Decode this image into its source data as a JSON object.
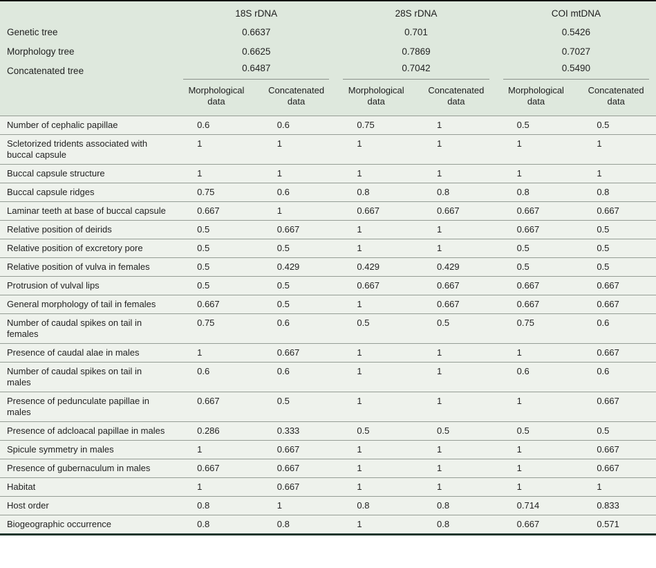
{
  "table": {
    "gene_groups": [
      "18S rDNA",
      "28S rDNA",
      "COI mtDNA"
    ],
    "tree_rows": [
      {
        "label": "Genetic tree",
        "values": [
          "0.6637",
          "0.701",
          "0.5426"
        ]
      },
      {
        "label": "Morphology tree",
        "values": [
          "0.6625",
          "0.7869",
          "0.7027"
        ]
      },
      {
        "label": "Concatenated tree",
        "values": [
          "0.6487",
          "0.7042",
          "0.5490"
        ]
      }
    ],
    "subheaders": [
      "Morphological data",
      "Concatenated data"
    ],
    "rows": [
      {
        "label": "Number of cephalic papillae",
        "values": [
          "0.6",
          "0.6",
          "0.75",
          "1",
          "0.5",
          "0.5"
        ]
      },
      {
        "label": "Scletorized tridents associated with buccal capsule",
        "values": [
          "1",
          "1",
          "1",
          "1",
          "1",
          "1"
        ]
      },
      {
        "label": "Buccal capsule structure",
        "values": [
          "1",
          "1",
          "1",
          "1",
          "1",
          "1"
        ]
      },
      {
        "label": "Buccal capsule ridges",
        "values": [
          "0.75",
          "0.6",
          "0.8",
          "0.8",
          "0.8",
          "0.8"
        ]
      },
      {
        "label": "Laminar teeth at base of buccal capsule",
        "values": [
          "0.667",
          "1",
          "0.667",
          "0.667",
          "0.667",
          "0.667"
        ]
      },
      {
        "label": "Relative position of deirids",
        "values": [
          "0.5",
          "0.667",
          "1",
          "1",
          "0.667",
          "0.5"
        ]
      },
      {
        "label": "Relative position of excretory pore",
        "values": [
          "0.5",
          "0.5",
          "1",
          "1",
          "0.5",
          "0.5"
        ]
      },
      {
        "label": "Relative position of vulva in females",
        "values": [
          "0.5",
          "0.429",
          "0.429",
          "0.429",
          "0.5",
          "0.5"
        ]
      },
      {
        "label": "Protrusion of vulval lips",
        "values": [
          "0.5",
          "0.5",
          "0.667",
          "0.667",
          "0.667",
          "0.667"
        ]
      },
      {
        "label": "General morphology of tail in females",
        "values": [
          "0.667",
          "0.5",
          "1",
          "0.667",
          "0.667",
          "0.667"
        ]
      },
      {
        "label": "Number of caudal spikes on tail in females",
        "values": [
          "0.75",
          "0.6",
          "0.5",
          "0.5",
          "0.75",
          "0.6"
        ]
      },
      {
        "label": "Presence of caudal alae in males",
        "values": [
          "1",
          "0.667",
          "1",
          "1",
          "1",
          "0.667"
        ]
      },
      {
        "label": "Number of caudal spikes on tail in males",
        "values": [
          "0.6",
          "0.6",
          "1",
          "1",
          "0.6",
          "0.6"
        ]
      },
      {
        "label": "Presence of pedunculate papillae in males",
        "values": [
          "0.667",
          "0.5",
          "1",
          "1",
          "1",
          "0.667"
        ]
      },
      {
        "label": "Presence of adcloacal papillae in males",
        "values": [
          "0.286",
          "0.333",
          "0.5",
          "0.5",
          "0.5",
          "0.5"
        ]
      },
      {
        "label": "Spicule symmetry in males",
        "values": [
          "1",
          "0.667",
          "1",
          "1",
          "1",
          "0.667"
        ]
      },
      {
        "label": "Presence of gubernaculum in males",
        "values": [
          "0.667",
          "0.667",
          "1",
          "1",
          "1",
          "0.667"
        ]
      },
      {
        "label": "Habitat",
        "values": [
          "1",
          "0.667",
          "1",
          "1",
          "1",
          "1"
        ]
      },
      {
        "label": "Host order",
        "values": [
          "0.8",
          "1",
          "0.8",
          "0.8",
          "0.714",
          "0.833"
        ]
      },
      {
        "label": "Biogeographic occurrence",
        "values": [
          "0.8",
          "0.8",
          "1",
          "0.8",
          "0.667",
          "0.571"
        ]
      }
    ]
  },
  "colors": {
    "header_bg": "#dee8dd",
    "body_bg": "#eef2ec",
    "row_line": "#959d95",
    "top_border": "#111111",
    "bottom_border": "#17352c"
  }
}
